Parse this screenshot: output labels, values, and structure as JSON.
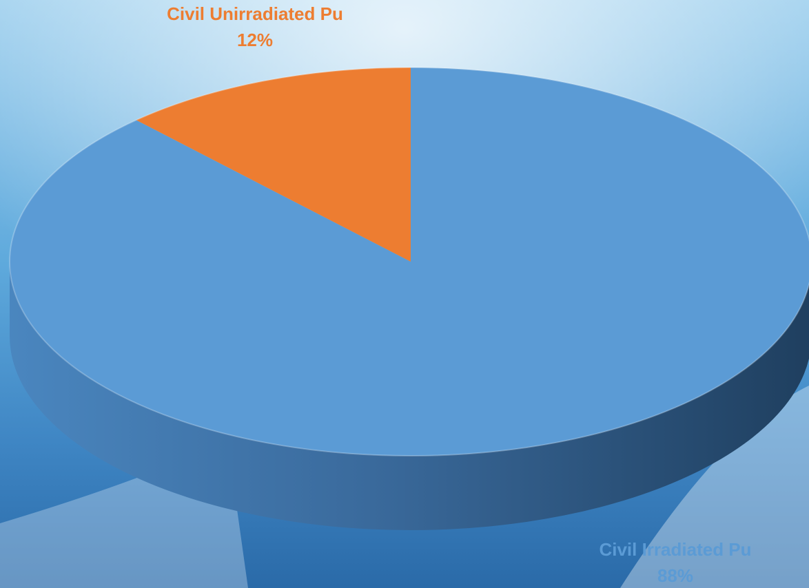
{
  "chart_data": {
    "type": "pie3d",
    "categories": [
      "Civil Irradiated Pu",
      "Civil Unirradiated Pu"
    ],
    "values": [
      88,
      12
    ],
    "value_labels": [
      "88%",
      "12%"
    ],
    "colors": [
      "#5b9bd5",
      "#ed7d31"
    ]
  }
}
